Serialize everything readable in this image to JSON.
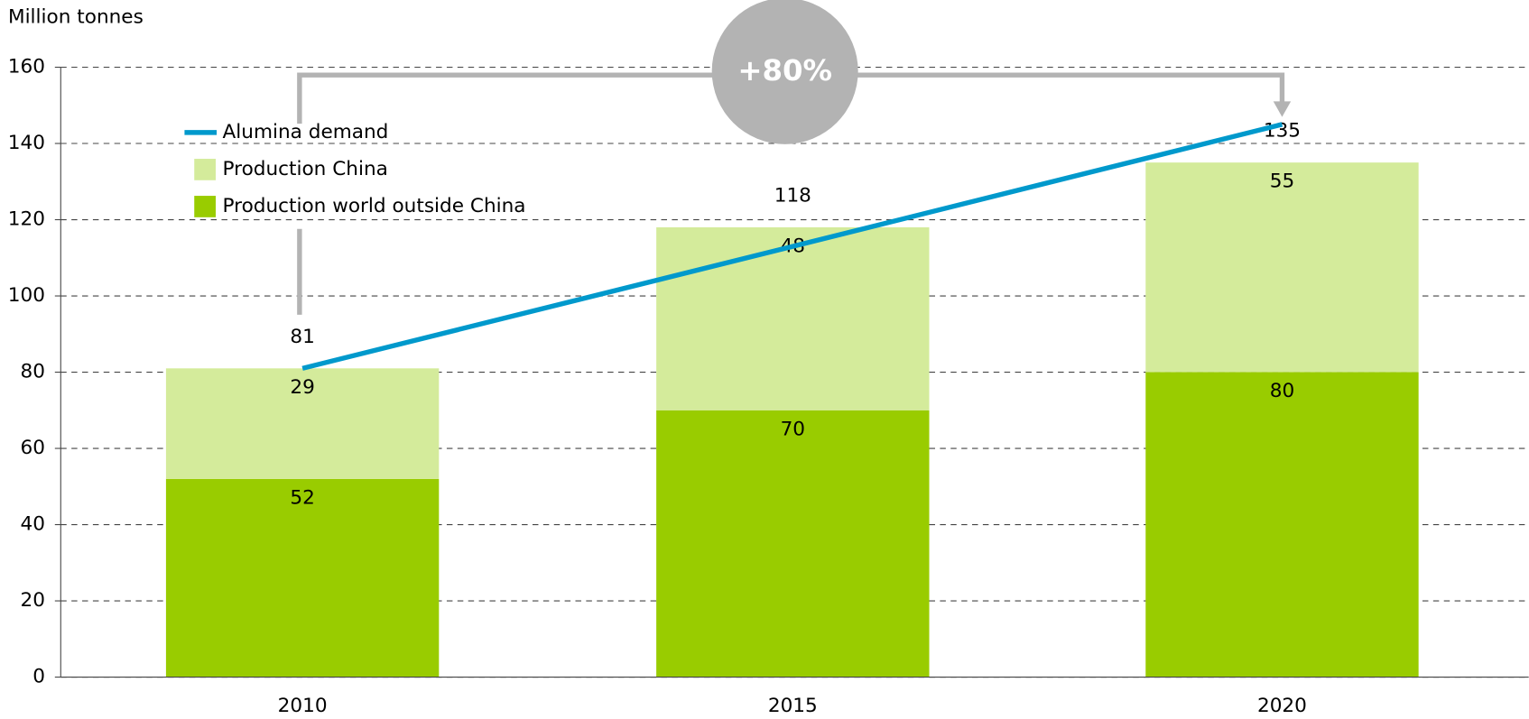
{
  "chart_data": {
    "type": "bar",
    "stacked": true,
    "y_label": "Million tonnes",
    "categories": [
      "2010",
      "2015",
      "2020"
    ],
    "series": [
      {
        "name": "Production world outside China",
        "color": "#99cc00",
        "values": [
          52,
          70,
          80
        ]
      },
      {
        "name": "Production China",
        "color": "#d4eb9b",
        "values": [
          29,
          48,
          55
        ]
      },
      {
        "name": "Alumina demand",
        "type": "line",
        "color": "#0099cc",
        "values": [
          81,
          113,
          145
        ]
      }
    ],
    "totals": [
      81,
      118,
      135
    ],
    "annotation": "+80%",
    "ylim": [
      0,
      160
    ],
    "yticks": [
      0,
      20,
      40,
      60,
      80,
      100,
      120,
      140,
      160
    ],
    "grid": true
  }
}
